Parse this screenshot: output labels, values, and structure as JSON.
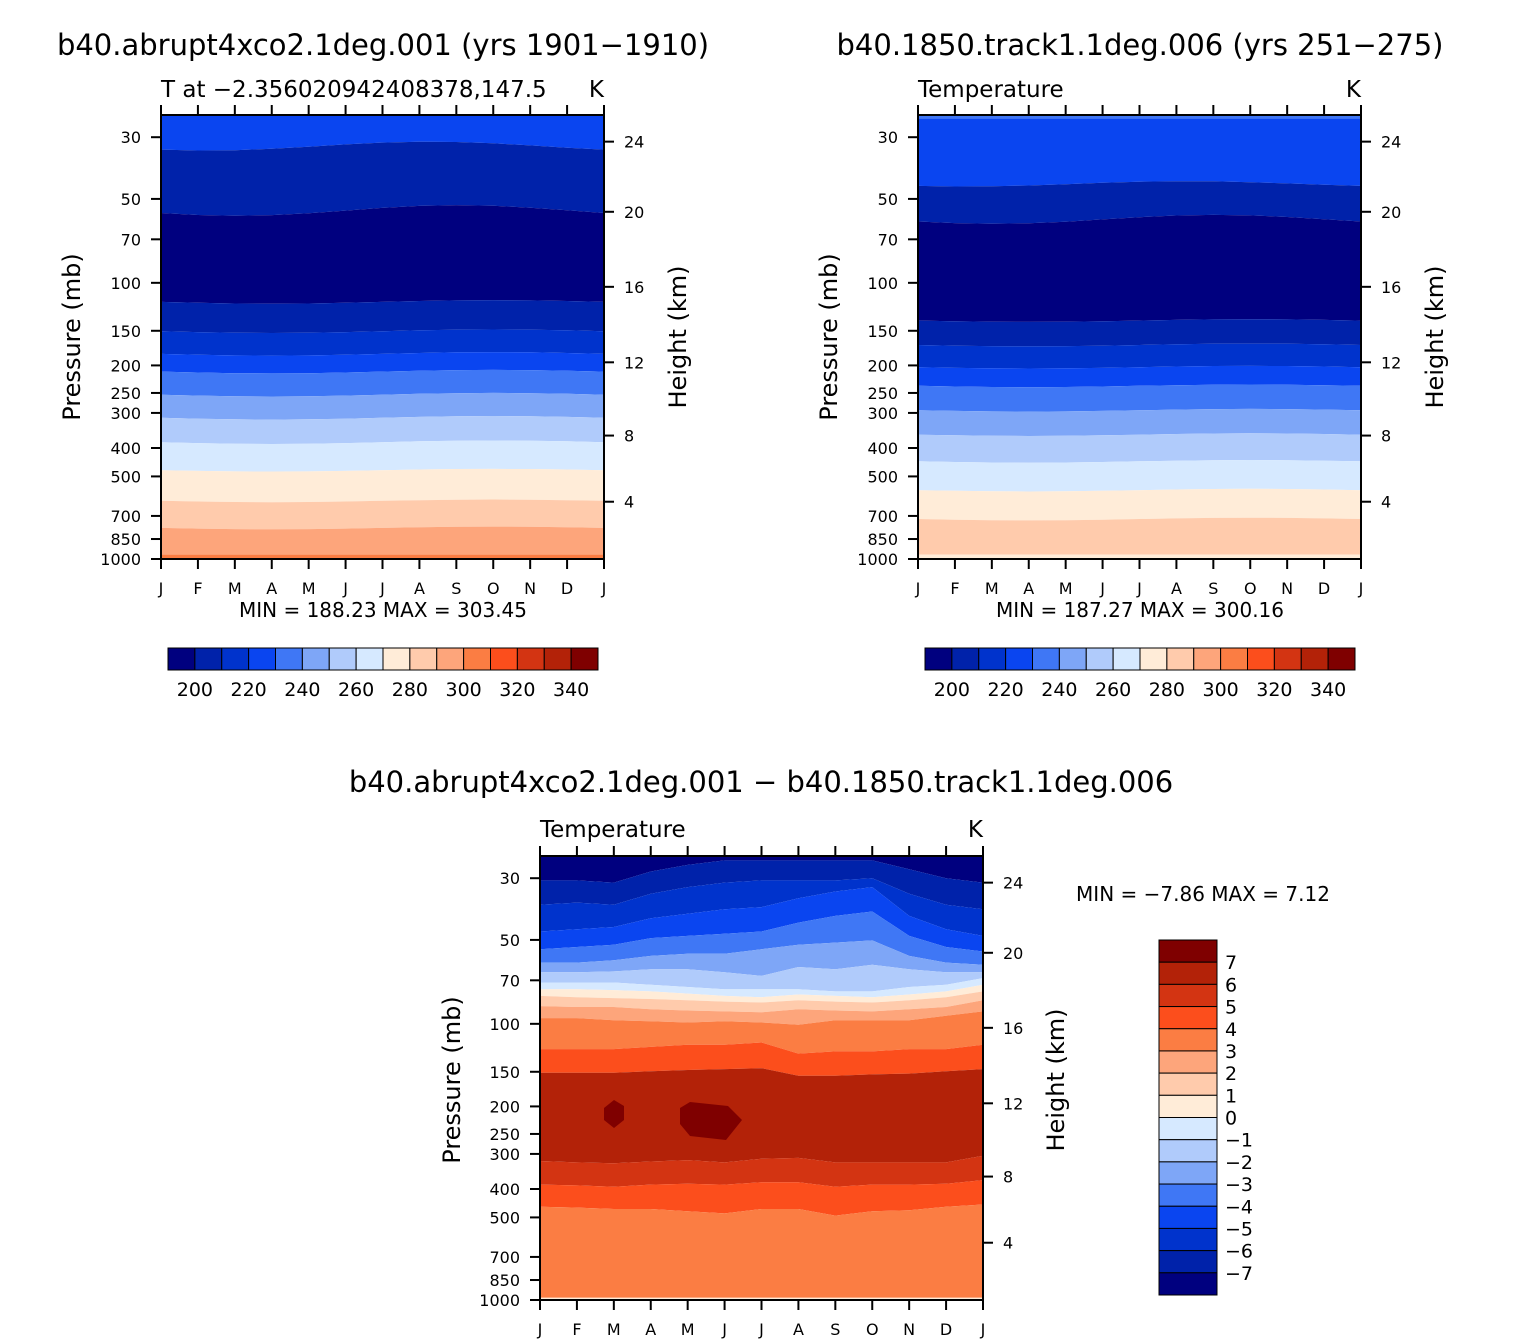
{
  "chart_data": [
    {
      "type": "heatmap",
      "title": "b40.abrupt4xco2.1deg.001 (yrs 1901−1910)",
      "left_subtitle": "T at −2.356020942408378,147.5",
      "right_subtitle": "K",
      "ylabel": "Pressure (mb)",
      "ylabel_right": "Height (km)",
      "stats": "MIN = 188.23 MAX = 303.45",
      "x_ticks": [
        "J",
        "F",
        "M",
        "A",
        "M",
        "J",
        "J",
        "A",
        "S",
        "O",
        "N",
        "D",
        "J"
      ],
      "y_ticks": [
        "30",
        "50",
        "70",
        "100",
        "150",
        "200",
        "250",
        "300",
        "400",
        "500",
        "700",
        "850",
        "1000"
      ],
      "y_ticks_right": [
        "24",
        "20",
        "16",
        "12",
        "8",
        "4"
      ],
      "colorbar_labels": [
        "200",
        "220",
        "240",
        "260",
        "280",
        "300",
        "320",
        "340"
      ],
      "levels": [
        190,
        200,
        210,
        220,
        230,
        240,
        250,
        260,
        270,
        280,
        290,
        300,
        310,
        320,
        330,
        340
      ]
    },
    {
      "type": "heatmap",
      "title": "b40.1850.track1.1deg.006 (yrs 251−275)",
      "left_subtitle": "Temperature",
      "right_subtitle": "K",
      "ylabel": "Pressure (mb)",
      "ylabel_right": "Height (km)",
      "stats": "MIN = 187.27 MAX = 300.16",
      "x_ticks": [
        "J",
        "F",
        "M",
        "A",
        "M",
        "J",
        "J",
        "A",
        "S",
        "O",
        "N",
        "D",
        "J"
      ],
      "y_ticks": [
        "30",
        "50",
        "70",
        "100",
        "150",
        "200",
        "250",
        "300",
        "400",
        "500",
        "700",
        "850",
        "1000"
      ],
      "y_ticks_right": [
        "24",
        "20",
        "16",
        "12",
        "8",
        "4"
      ],
      "colorbar_labels": [
        "200",
        "220",
        "240",
        "260",
        "280",
        "300",
        "320",
        "340"
      ],
      "levels": [
        190,
        200,
        210,
        220,
        230,
        240,
        250,
        260,
        270,
        280,
        290,
        300,
        310,
        320,
        330,
        340
      ]
    },
    {
      "type": "heatmap",
      "title": "b40.abrupt4xco2.1deg.001 − b40.1850.track1.1deg.006",
      "left_subtitle": "Temperature",
      "right_subtitle": "K",
      "ylabel": "Pressure (mb)",
      "ylabel_right": "Height (km)",
      "stats": "MIN =   −7.86 MAX =    7.12",
      "x_ticks": [
        "J",
        "F",
        "M",
        "A",
        "M",
        "J",
        "J",
        "A",
        "S",
        "O",
        "N",
        "D",
        "J"
      ],
      "y_ticks": [
        "30",
        "50",
        "70",
        "100",
        "150",
        "200",
        "250",
        "300",
        "400",
        "500",
        "700",
        "850",
        "1000"
      ],
      "y_ticks_right": [
        "24",
        "20",
        "16",
        "12",
        "8",
        "4"
      ],
      "colorbar_labels": [
        "7",
        "6",
        "5",
        "4",
        "3",
        "2",
        "1",
        "0",
        "−1",
        "−2",
        "−3",
        "−4",
        "−5",
        "−6",
        "−7"
      ],
      "levels": [
        -7,
        -6,
        -5,
        -4,
        -3,
        -2,
        -1,
        0,
        1,
        2,
        3,
        4,
        5,
        6,
        7
      ]
    }
  ],
  "colors": {
    "palette": [
      "#00007f",
      "#0022aa",
      "#0033cc",
      "#0a45f0",
      "#3f77f5",
      "#7ea6f7",
      "#b0cbfb",
      "#d6e9ff",
      "#ffecd8",
      "#ffcbac",
      "#fda57b",
      "#fb7d43",
      "#fc4e1c",
      "#d33412",
      "#b32208",
      "#7f0000"
    ],
    "diff_palette": [
      "#00007f",
      "#0022aa",
      "#0033cc",
      "#0a45f0",
      "#3f77f5",
      "#7ea6f7",
      "#b0cbfb",
      "#d6e9ff",
      "#ffecd8",
      "#ffcbac",
      "#fda57b",
      "#fb7d43",
      "#fc4e1c",
      "#d33412",
      "#b32208",
      "#7f0000"
    ]
  }
}
